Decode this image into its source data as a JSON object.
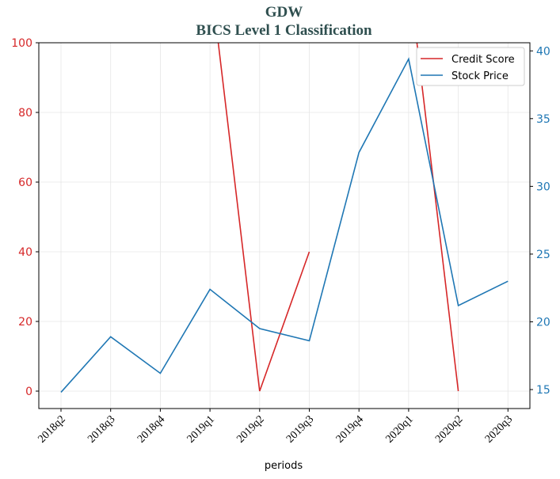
{
  "chart_data": {
    "type": "line",
    "title": "GDW",
    "subtitle": "BICS Level 1 Classification",
    "xlabel": "periods",
    "categories": [
      "2018q2",
      "2018q3",
      "2018q4",
      "2019q1",
      "2019q2",
      "2019q3",
      "2019q4",
      "2020q1",
      "2020q2",
      "2020q3"
    ],
    "left_axis": {
      "ylim": [
        -5,
        100
      ],
      "ticks": [
        0,
        20,
        40,
        60,
        80,
        100
      ],
      "color": "#d62728"
    },
    "right_axis": {
      "ylim": [
        13.6,
        40.6
      ],
      "ticks": [
        15,
        20,
        25,
        30,
        35,
        40
      ],
      "color": "#1f77b4"
    },
    "grid": true,
    "legend_position": "top-right",
    "series": [
      {
        "name": "Credit Score",
        "axis": "left",
        "color": "#d62728",
        "values": [
          null,
          null,
          null,
          120,
          0,
          40,
          null,
          120,
          0,
          null
        ]
      },
      {
        "name": "Stock Price",
        "axis": "right",
        "color": "#1f77b4",
        "values": [
          14.8,
          18.9,
          16.2,
          22.4,
          19.5,
          18.6,
          32.5,
          39.4,
          21.2,
          23.0
        ]
      }
    ]
  }
}
